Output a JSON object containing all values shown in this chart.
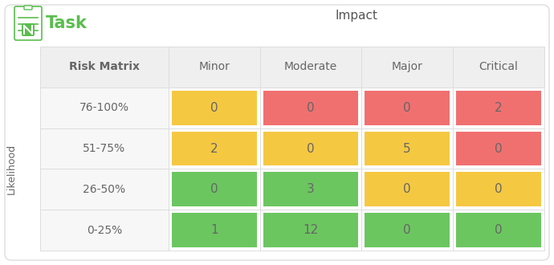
{
  "title": "Impact",
  "ylabel": "Likelihood",
  "col_labels": [
    "Risk Matrix",
    "Minor",
    "Moderate",
    "Major",
    "Critical"
  ],
  "row_labels": [
    "76-100%",
    "51-75%",
    "26-50%",
    "0-25%"
  ],
  "values": [
    [
      0,
      0,
      0,
      2
    ],
    [
      2,
      0,
      5,
      0
    ],
    [
      0,
      3,
      0,
      0
    ],
    [
      1,
      12,
      0,
      0
    ]
  ],
  "cell_colors": [
    [
      "#F5C842",
      "#F07070",
      "#F07070",
      "#F07070"
    ],
    [
      "#F5C842",
      "#F5C842",
      "#F5C842",
      "#F07070"
    ],
    [
      "#6CC660",
      "#6CC660",
      "#F5C842",
      "#F5C842"
    ],
    [
      "#6CC660",
      "#6CC660",
      "#6CC660",
      "#6CC660"
    ]
  ],
  "header_bg": "#EFEFEF",
  "row_label_bg": "#F7F7F7",
  "border_color": "#DDDDDD",
  "text_color": "#666666",
  "header_text_color": "#666666",
  "value_text_color": "#666666",
  "background_color": "#FFFFFF",
  "task_text": "Task",
  "task_green": "#5BBD4E",
  "title_color": "#555555",
  "title_fontsize": 11,
  "cell_fontsize": 11,
  "header_fontsize": 10,
  "row_label_fontsize": 10,
  "ylabel_fontsize": 9,
  "logo_green": "#5BBD4E",
  "logo_outline": "#5BBD4E"
}
